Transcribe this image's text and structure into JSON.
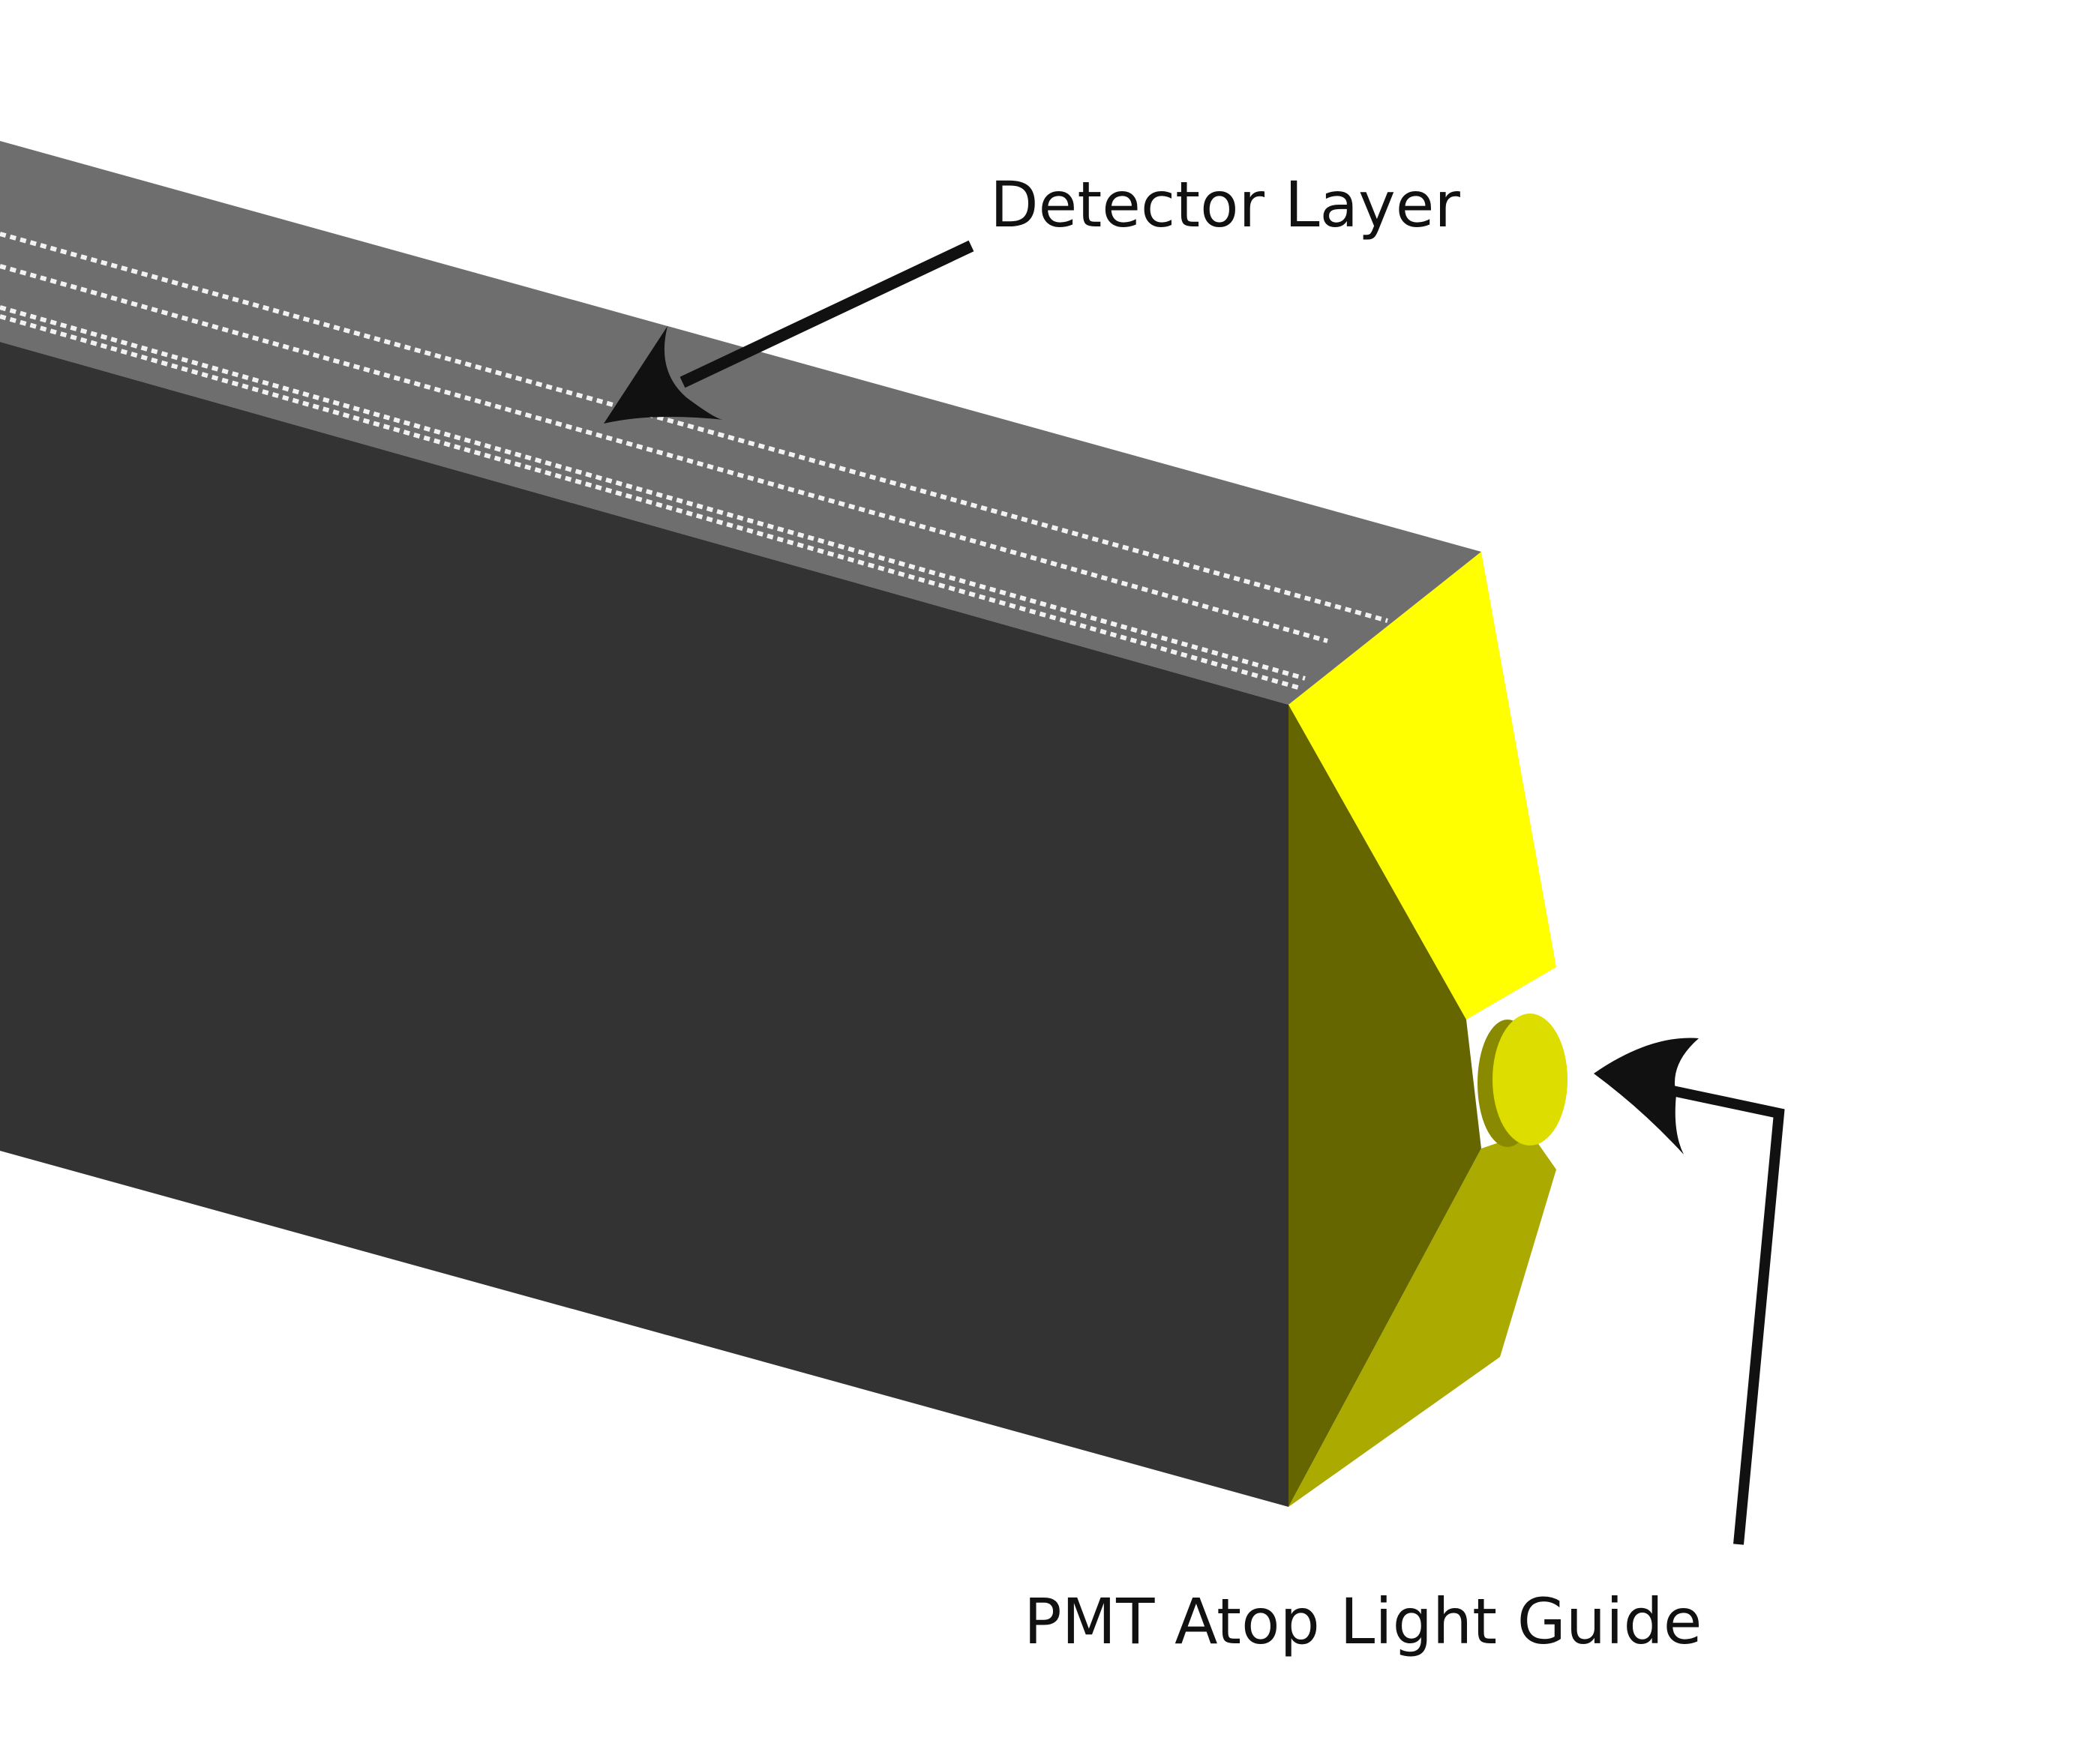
{
  "labels": {
    "detector_layer": "Detector Layer",
    "pmt_light_guide": "PMT Atop Light Guide"
  },
  "colors": {
    "background": "#ffffff",
    "detector_top": "#6e6e6e",
    "detector_front": "#333333",
    "strip_lines": "#f2f2f2",
    "guide_top_face": "#ffff00",
    "guide_side_face": "#666600",
    "guide_lower_face": "#aaaa00",
    "pmt_face": "#dddd00",
    "pmt_rim": "#8a8a00",
    "arrow": "#111111"
  }
}
